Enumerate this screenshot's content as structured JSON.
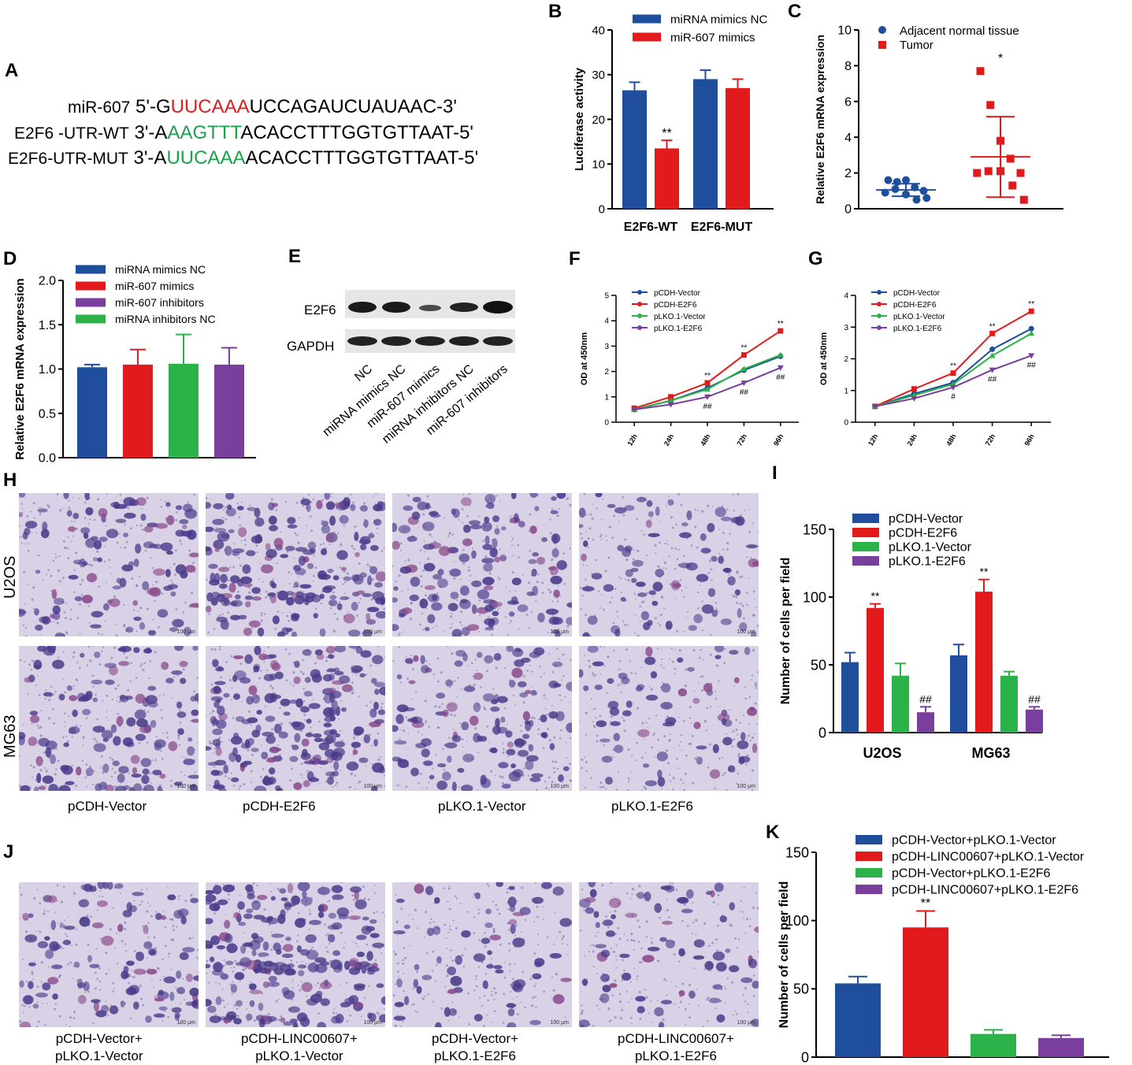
{
  "panels": {
    "A": {
      "letter": "A",
      "rows": [
        {
          "label": "miR-607",
          "prefix": "5'-G",
          "seed": "UUCAAA",
          "suffix": "UCCAGAUCUAUAAC-3'",
          "seed_color": "#e31a1c"
        },
        {
          "label": "E2F6 -UTR-WT",
          "prefix": "3'-A",
          "seed": "AAGTTT",
          "suffix": "ACACCTTTGGTGTTAAT-5'",
          "seed_color": "#1aa34a"
        },
        {
          "label": "E2F6-UTR-MUT",
          "prefix": "3'-A",
          "seed": "UUCAAA",
          "suffix": "ACACCTTTGGTGTTAAT-5'",
          "seed_color": "#1aa34a"
        }
      ]
    },
    "E": {
      "letter": "E",
      "bands": [
        "E2F6",
        "GAPDH"
      ],
      "lanes": [
        "NC",
        "miRNA mimics NC",
        "miR-607 mimics",
        "miRNA inhibitors NC",
        "miR-607 inhibitors"
      ]
    },
    "H": {
      "letter": "H",
      "rows": [
        "U2OS",
        "MG63"
      ],
      "conditions": [
        "pCDH-Vector",
        "pCDH-E2F6",
        "pLKO.1-Vector",
        "pLKO.1-E2F6"
      ],
      "density": [
        [
          0.45,
          0.85,
          0.55,
          0.25
        ],
        [
          0.55,
          0.95,
          0.5,
          0.2
        ]
      ],
      "scale_text": "100 μm"
    },
    "J": {
      "letter": "J",
      "conditions_line1": [
        "pCDH-Vector+",
        "pCDH-LINC00607+",
        "pCDH-Vector+",
        "pCDH-LINC00607+"
      ],
      "conditions_line2": [
        "pLKO.1-Vector",
        "pLKO.1-Vector",
        "pLKO.1-E2F6",
        "pLKO.1-E2F6"
      ],
      "density": [
        0.4,
        0.95,
        0.2,
        0.22
      ],
      "scale_text": "100 μm"
    }
  },
  "colors": {
    "blue": "#1f4e9c",
    "red": "#e31a1c",
    "green": "#2bb34a",
    "purple": "#7a3e9d",
    "cell": "#4a3a8a",
    "bg": "#d9d2e6"
  },
  "chart_data": [
    {
      "id": "B",
      "letter": "B",
      "type": "bar",
      "categories": [
        "E2F6-WT",
        "E2F6-MUT"
      ],
      "series": [
        {
          "name": "miRNA mimics NC",
          "color": "#1f4e9c",
          "values": [
            26.5,
            29.0
          ],
          "errors": [
            1.8,
            2.0
          ]
        },
        {
          "name": "miR-607 mimics",
          "color": "#e31a1c",
          "values": [
            13.5,
            27.0
          ],
          "errors": [
            1.8,
            2.0
          ]
        }
      ],
      "annotations": [
        {
          "series": 1,
          "category": 0,
          "text": "**"
        }
      ],
      "ylabel": "Luciferase activity",
      "ylim": [
        0,
        40
      ],
      "yticks": [
        0,
        10,
        20,
        30,
        40
      ]
    },
    {
      "id": "C",
      "letter": "C",
      "type": "scatter",
      "categories": [
        "Adjacent normal tissue",
        "Tumor"
      ],
      "series": [
        {
          "name": "Adjacent normal tissue",
          "color": "#1f4e9c",
          "marker": "circle",
          "values": [
            1.6,
            1.5,
            1.6,
            1.2,
            1.0,
            0.9,
            1.1,
            0.8,
            0.5,
            0.6
          ],
          "mean": 1.05,
          "sd": 0.35
        },
        {
          "name": "Tumor",
          "color": "#e31a1c",
          "marker": "square",
          "values": [
            7.7,
            5.8,
            3.8,
            2.8,
            2.0,
            2.0,
            2.1,
            2.1,
            1.3,
            0.5
          ],
          "mean": 2.9,
          "sd": 2.25
        }
      ],
      "annotations": [
        {
          "series": 1,
          "text": "*"
        }
      ],
      "ylabel": "Relative E2F6 mRNA expression",
      "ylim": [
        0,
        10
      ],
      "yticks": [
        0,
        2,
        4,
        6,
        8,
        10
      ]
    },
    {
      "id": "D",
      "letter": "D",
      "type": "bar",
      "categories": [
        "miRNA mimics NC",
        "miR-607 mimics",
        "miR-607 inhibitors",
        "miRNA inhibitors NC"
      ],
      "series": [
        {
          "name": "miRNA mimics NC",
          "color": "#1f4e9c",
          "value": 1.02,
          "error": 0.03
        },
        {
          "name": "miR-607 mimics",
          "color": "#e31a1c",
          "value": 1.05,
          "error": 0.17
        },
        {
          "name": "miR-607 inhibitors",
          "color": "#7a3e9d",
          "value": 1.06,
          "error": 0.33
        },
        {
          "name": "miRNA inhibitors NC",
          "color": "#2bb34a",
          "value": 1.05,
          "error": 0.19
        }
      ],
      "bar_order_colors": [
        "#1f4e9c",
        "#e31a1c",
        "#2bb34a",
        "#7a3e9d"
      ],
      "bar_values": [
        1.02,
        1.05,
        1.06,
        1.05
      ],
      "bar_errors": [
        0.03,
        0.17,
        0.33,
        0.19
      ],
      "ylabel": "Relative E2F6 mRNA expression",
      "ylim": [
        0,
        2.0
      ],
      "yticks": [
        "0.0",
        "0.5",
        "1.0",
        "1.5",
        "2.0"
      ]
    },
    {
      "id": "F",
      "letter": "F",
      "type": "line",
      "x": [
        "12h",
        "24h",
        "48h",
        "72h",
        "96h"
      ],
      "series": [
        {
          "name": "pCDH-Vector",
          "color": "#1f4e9c",
          "marker": "circle",
          "values": [
            0.5,
            0.85,
            1.35,
            2.05,
            2.6
          ]
        },
        {
          "name": "pCDH-E2F6",
          "color": "#e31a1c",
          "marker": "square",
          "values": [
            0.55,
            1.0,
            1.55,
            2.65,
            3.6
          ]
        },
        {
          "name": "pLKO.1-Vector",
          "color": "#2bb34a",
          "marker": "triangle",
          "values": [
            0.5,
            0.85,
            1.3,
            2.1,
            2.65
          ]
        },
        {
          "name": "pLKO.1-E2F6",
          "color": "#7a3e9d",
          "marker": "tri-down",
          "values": [
            0.5,
            0.7,
            1.0,
            1.55,
            2.15
          ]
        }
      ],
      "top_marks": [
        "",
        "",
        "**",
        "**",
        "**"
      ],
      "bottom_marks": [
        "",
        "",
        "##",
        "##",
        "##"
      ],
      "ylabel": "OD at 450nm",
      "ylim": [
        0,
        5
      ],
      "yticks": [
        0,
        1,
        2,
        3,
        4,
        5
      ]
    },
    {
      "id": "G",
      "letter": "G",
      "type": "line",
      "x": [
        "12h",
        "24h",
        "48h",
        "72h",
        "96h"
      ],
      "series": [
        {
          "name": "pCDH-Vector",
          "color": "#1f4e9c",
          "marker": "circle",
          "values": [
            0.5,
            0.9,
            1.25,
            2.3,
            2.95
          ]
        },
        {
          "name": "pCDH-E2F6",
          "color": "#e31a1c",
          "marker": "square",
          "values": [
            0.5,
            1.05,
            1.55,
            2.8,
            3.5
          ]
        },
        {
          "name": "pLKO.1-Vector",
          "color": "#2bb34a",
          "marker": "triangle",
          "values": [
            0.5,
            0.85,
            1.2,
            2.1,
            2.8
          ]
        },
        {
          "name": "pLKO.1-E2F6",
          "color": "#7a3e9d",
          "marker": "tri-down",
          "values": [
            0.5,
            0.75,
            1.1,
            1.65,
            2.1
          ]
        }
      ],
      "top_marks": [
        "",
        "",
        "**",
        "**",
        "**"
      ],
      "bottom_marks": [
        "",
        "",
        "#",
        "##",
        "##"
      ],
      "ylabel": "OD at 450nm",
      "ylim": [
        0,
        4
      ],
      "yticks": [
        0,
        1,
        2,
        3,
        4
      ]
    },
    {
      "id": "I",
      "letter": "I",
      "type": "bar",
      "categories": [
        "U2OS",
        "MG63"
      ],
      "series": [
        {
          "name": "pCDH-Vector",
          "color": "#1f4e9c",
          "values": [
            52,
            57
          ],
          "errors": [
            7,
            8
          ]
        },
        {
          "name": "pCDH-E2F6",
          "color": "#e31a1c",
          "values": [
            92,
            104
          ],
          "errors": [
            3,
            9
          ]
        },
        {
          "name": "pLKO.1-Vector",
          "color": "#2bb34a",
          "values": [
            42,
            42
          ],
          "errors": [
            9,
            3
          ]
        },
        {
          "name": "pLKO.1-E2F6",
          "color": "#7a3e9d",
          "values": [
            15,
            17
          ],
          "errors": [
            4,
            2
          ]
        }
      ],
      "annotations": [
        {
          "series": 1,
          "category": 0,
          "text": "**"
        },
        {
          "series": 1,
          "category": 1,
          "text": "**"
        },
        {
          "series": 3,
          "category": 0,
          "text": "##"
        },
        {
          "series": 3,
          "category": 1,
          "text": "##"
        }
      ],
      "ylabel": "Number of cells per field",
      "ylim": [
        0,
        150
      ],
      "yticks": [
        0,
        50,
        100,
        150
      ]
    },
    {
      "id": "K",
      "letter": "K",
      "type": "bar",
      "categories": [
        "pCDH-Vector+pLKO.1-Vector",
        "pCDH-LINC00607+pLKO.1-Vector",
        "pCDH-Vector+pLKO.1-E2F6",
        "pCDH-LINC00607+pLKO.1-E2F6"
      ],
      "series": [
        {
          "name": "pCDH-Vector+pLKO.1-Vector",
          "color": "#1f4e9c",
          "value": 54,
          "error": 5
        },
        {
          "name": "pCDH-LINC00607+pLKO.1-Vector",
          "color": "#e31a1c",
          "value": 95,
          "error": 12
        },
        {
          "name": "pCDH-Vector+pLKO.1-E2F6",
          "color": "#2bb34a",
          "value": 17,
          "error": 3
        },
        {
          "name": "pCDH-LINC00607+pLKO.1-E2F6",
          "color": "#7a3e9d",
          "value": 14,
          "error": 2
        }
      ],
      "annotations": [
        {
          "series": 1,
          "text": "**"
        }
      ],
      "ylabel": "Number of cells per field",
      "ylim": [
        0,
        150
      ],
      "yticks": [
        0,
        50,
        100,
        150
      ]
    }
  ]
}
